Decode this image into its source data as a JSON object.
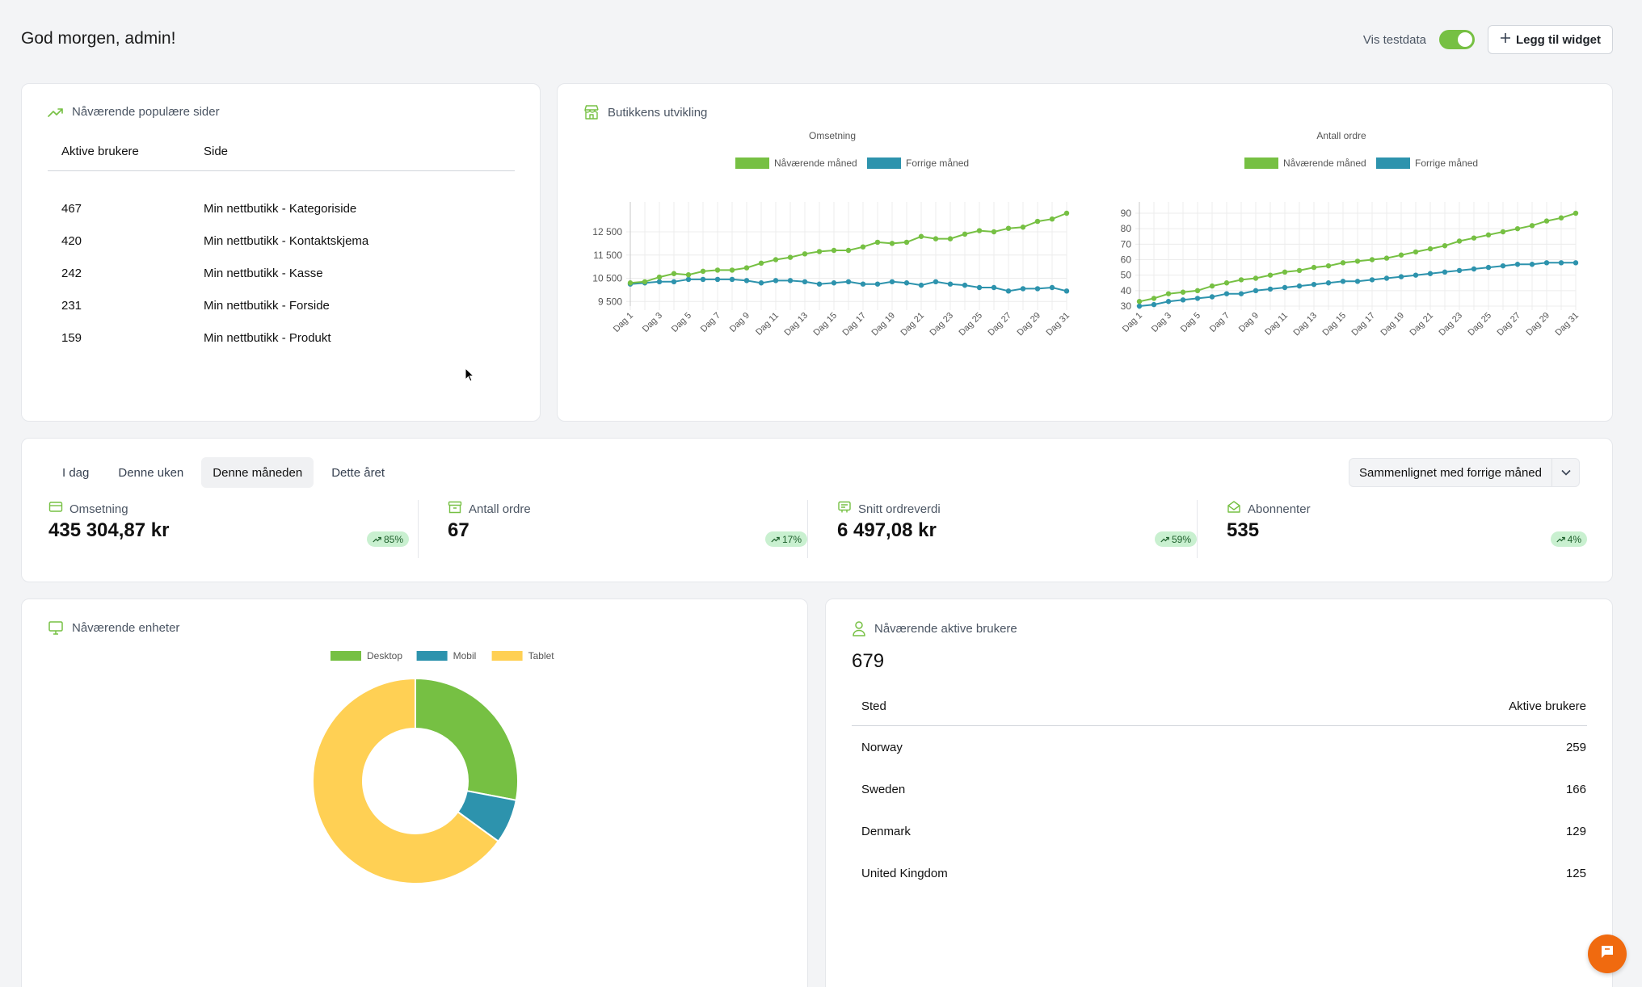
{
  "header": {
    "greeting": "God morgen, admin!",
    "testdata_label": "Vis testdata",
    "testdata_on": true,
    "add_widget_label": "Legg til widget"
  },
  "popular_pages": {
    "title": "Nåværende populære sider",
    "columns": [
      "Aktive brukere",
      "Side"
    ],
    "rows": [
      {
        "users": "467",
        "page": "Min nettbutikk - Kategoriside"
      },
      {
        "users": "420",
        "page": "Min nettbutikk - Kontaktskjema"
      },
      {
        "users": "242",
        "page": "Min nettbutikk - Kasse"
      },
      {
        "users": "231",
        "page": "Min nettbutikk - Forside"
      },
      {
        "users": "159",
        "page": "Min nettbutikk - Produkt"
      }
    ]
  },
  "store_dev": {
    "title": "Butikkens utvikling"
  },
  "stats": {
    "tabs": [
      {
        "label": "I dag",
        "active": false
      },
      {
        "label": "Denne uken",
        "active": false
      },
      {
        "label": "Denne måneden",
        "active": true
      },
      {
        "label": "Dette året",
        "active": false
      }
    ],
    "compare_label": "Sammenlignet med forrige måned",
    "kpis": [
      {
        "label": "Omsetning",
        "value": "435 304,87 kr",
        "badge": "85%",
        "icon": "credit-card-icon"
      },
      {
        "label": "Antall ordre",
        "value": "67",
        "badge": "17%",
        "icon": "archive-box-icon"
      },
      {
        "label": "Snitt ordreverdi",
        "value": "6 497,08 kr",
        "badge": "59%",
        "icon": "receipt-icon"
      },
      {
        "label": "Abonnenter",
        "value": "535",
        "badge": "4%",
        "icon": "envelope-open-icon"
      }
    ]
  },
  "devices": {
    "title": "Nåværende enheter"
  },
  "active_users": {
    "title": "Nåværende aktive brukere",
    "total": "679",
    "columns": [
      "Sted",
      "Aktive brukere"
    ],
    "rows": [
      {
        "place": "Norway",
        "users": "259"
      },
      {
        "place": "Sweden",
        "users": "166"
      },
      {
        "place": "Denmark",
        "users": "129"
      },
      {
        "place": "United Kingdom",
        "users": "125"
      }
    ]
  },
  "colors": {
    "green": "#76c043",
    "blue": "#2d93ad",
    "yellow": "#ffd054",
    "chat": "#f06a0f"
  },
  "chart_data": [
    {
      "type": "line",
      "title": "Omsetning",
      "x": [
        "Dag 1",
        "Dag 2",
        "Dag 3",
        "Dag 4",
        "Dag 5",
        "Dag 6",
        "Dag 7",
        "Dag 8",
        "Dag 9",
        "Dag 10",
        "Dag 11",
        "Dag 12",
        "Dag 13",
        "Dag 14",
        "Dag 15",
        "Dag 16",
        "Dag 17",
        "Dag 18",
        "Dag 19",
        "Dag 20",
        "Dag 21",
        "Dag 22",
        "Dag 23",
        "Dag 24",
        "Dag 25",
        "Dag 26",
        "Dag 27",
        "Dag 28",
        "Dag 29",
        "Dag 30",
        "Dag 31"
      ],
      "x_tick_labels": [
        "Dag 1",
        "Dag 3",
        "Dag 5",
        "Dag 7",
        "Dag 9",
        "Dag 11",
        "Dag 13",
        "Dag 15",
        "Dag 17",
        "Dag 19",
        "Dag 21",
        "Dag 23",
        "Dag 25",
        "Dag 27",
        "Dag 29",
        "Dag 31"
      ],
      "y_ticks": [
        9500,
        10500,
        11500,
        12500
      ],
      "y_tick_labels": [
        "9 500",
        "10 500",
        "11 500",
        "12 500"
      ],
      "ylim": [
        9300,
        13300
      ],
      "series": [
        {
          "name": "Nåværende måned",
          "color": "#76c043",
          "values": [
            10300,
            10350,
            10550,
            10700,
            10650,
            10800,
            10850,
            10850,
            10950,
            11150,
            11300,
            11400,
            11550,
            11650,
            11700,
            11700,
            11850,
            12050,
            12000,
            12050,
            12300,
            12200,
            12200,
            12400,
            12550,
            12500,
            12650,
            12700,
            12950,
            13050,
            13300
          ]
        },
        {
          "name": "Forrige måned",
          "color": "#2d93ad",
          "values": [
            10250,
            10300,
            10350,
            10350,
            10450,
            10450,
            10450,
            10450,
            10400,
            10300,
            10400,
            10400,
            10350,
            10250,
            10300,
            10350,
            10250,
            10250,
            10350,
            10300,
            10200,
            10350,
            10250,
            10200,
            10100,
            10100,
            9950,
            10050,
            10050,
            10100,
            9950
          ]
        }
      ],
      "legend": "top"
    },
    {
      "type": "line",
      "title": "Antall ordre",
      "x": [
        "Dag 1",
        "Dag 2",
        "Dag 3",
        "Dag 4",
        "Dag 5",
        "Dag 6",
        "Dag 7",
        "Dag 8",
        "Dag 9",
        "Dag 10",
        "Dag 11",
        "Dag 12",
        "Dag 13",
        "Dag 14",
        "Dag 15",
        "Dag 16",
        "Dag 17",
        "Dag 18",
        "Dag 19",
        "Dag 20",
        "Dag 21",
        "Dag 22",
        "Dag 23",
        "Dag 24",
        "Dag 25",
        "Dag 26",
        "Dag 27",
        "Dag 28",
        "Dag 29",
        "Dag 30",
        "Dag 31"
      ],
      "x_tick_labels": [
        "Dag 1",
        "Dag 3",
        "Dag 5",
        "Dag 7",
        "Dag 9",
        "Dag 11",
        "Dag 13",
        "Dag 15",
        "Dag 17",
        "Dag 19",
        "Dag 21",
        "Dag 23",
        "Dag 25",
        "Dag 27",
        "Dag 29",
        "Dag 31"
      ],
      "y_ticks": [
        30,
        40,
        50,
        60,
        70,
        80,
        90
      ],
      "ylim": [
        30,
        90
      ],
      "series": [
        {
          "name": "Nåværende måned",
          "color": "#76c043",
          "values": [
            33,
            35,
            38,
            39,
            40,
            43,
            45,
            47,
            48,
            50,
            52,
            53,
            55,
            56,
            58,
            59,
            60,
            61,
            63,
            65,
            67,
            69,
            72,
            74,
            76,
            78,
            80,
            82,
            85,
            87,
            90
          ]
        },
        {
          "name": "Forrige måned",
          "color": "#2d93ad",
          "values": [
            30,
            31,
            33,
            34,
            35,
            36,
            38,
            38,
            40,
            41,
            42,
            43,
            44,
            45,
            46,
            46,
            47,
            48,
            49,
            50,
            51,
            52,
            53,
            54,
            55,
            56,
            57,
            57,
            58,
            58,
            58
          ]
        }
      ],
      "legend": "top"
    },
    {
      "type": "pie",
      "subtype": "doughnut",
      "labels": [
        "Desktop",
        "Mobil",
        "Tablet"
      ],
      "values": [
        28,
        7,
        65
      ],
      "colors": [
        "#76c043",
        "#2d93ad",
        "#ffd054"
      ],
      "legend": "top"
    }
  ]
}
